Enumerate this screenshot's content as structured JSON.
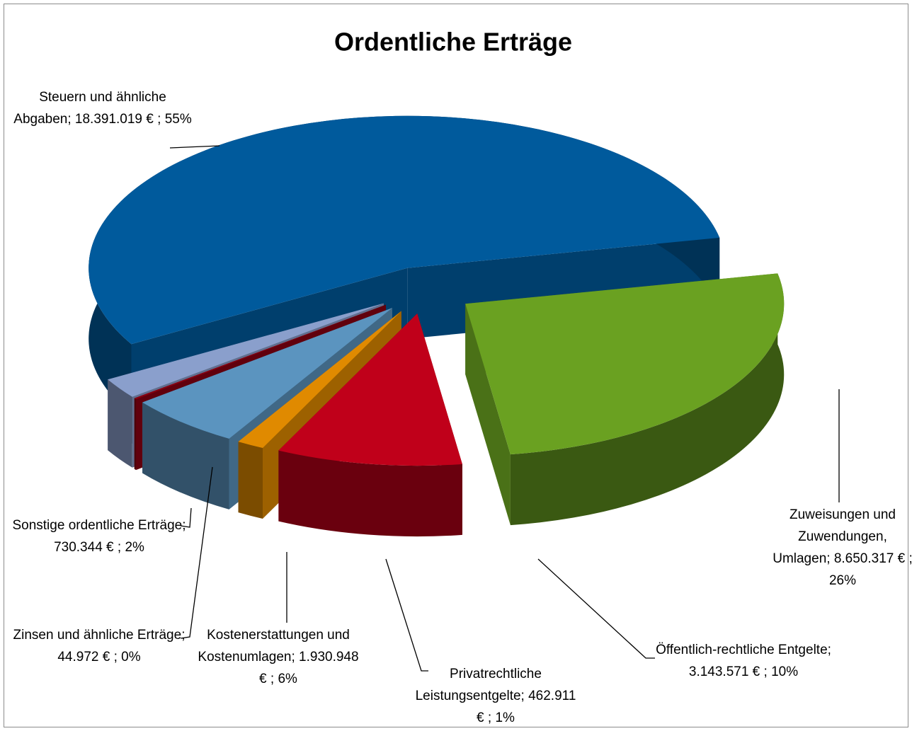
{
  "chart_data": {
    "type": "pie3d",
    "title": "Ordentliche Erträge",
    "categories": [
      "Steuern und ähnliche Abgaben",
      "Zuweisungen und Zuwendungen, Umlagen",
      "Öffentlich-rechtliche Entgelte",
      "Privatrechtliche Leistungsentgelte",
      "Kostenerstattungen und Kostenumlagen",
      "Zinsen und ähnliche Erträge",
      "Sonstige ordentliche Erträge"
    ],
    "values": [
      18391019,
      8650317,
      3143571,
      462911,
      1930948,
      44972,
      730344
    ],
    "value_labels": [
      "18.391.019 €",
      "8.650.317 €",
      "3.143.571 €",
      "462.911 €",
      "1.930.948 €",
      "44.972 €",
      "730.344 €"
    ],
    "percents": [
      55,
      26,
      10,
      1,
      6,
      0,
      2
    ],
    "percent_labels": [
      "55%",
      "26%",
      "10%",
      "1%",
      "6%",
      "0%",
      "2%"
    ],
    "label_separator": ";",
    "colors": [
      "#005a9c",
      "#6aa121",
      "#c0001a",
      "#e08a00",
      "#5b94bf",
      "#8a0012",
      "#8a9fcc"
    ]
  }
}
